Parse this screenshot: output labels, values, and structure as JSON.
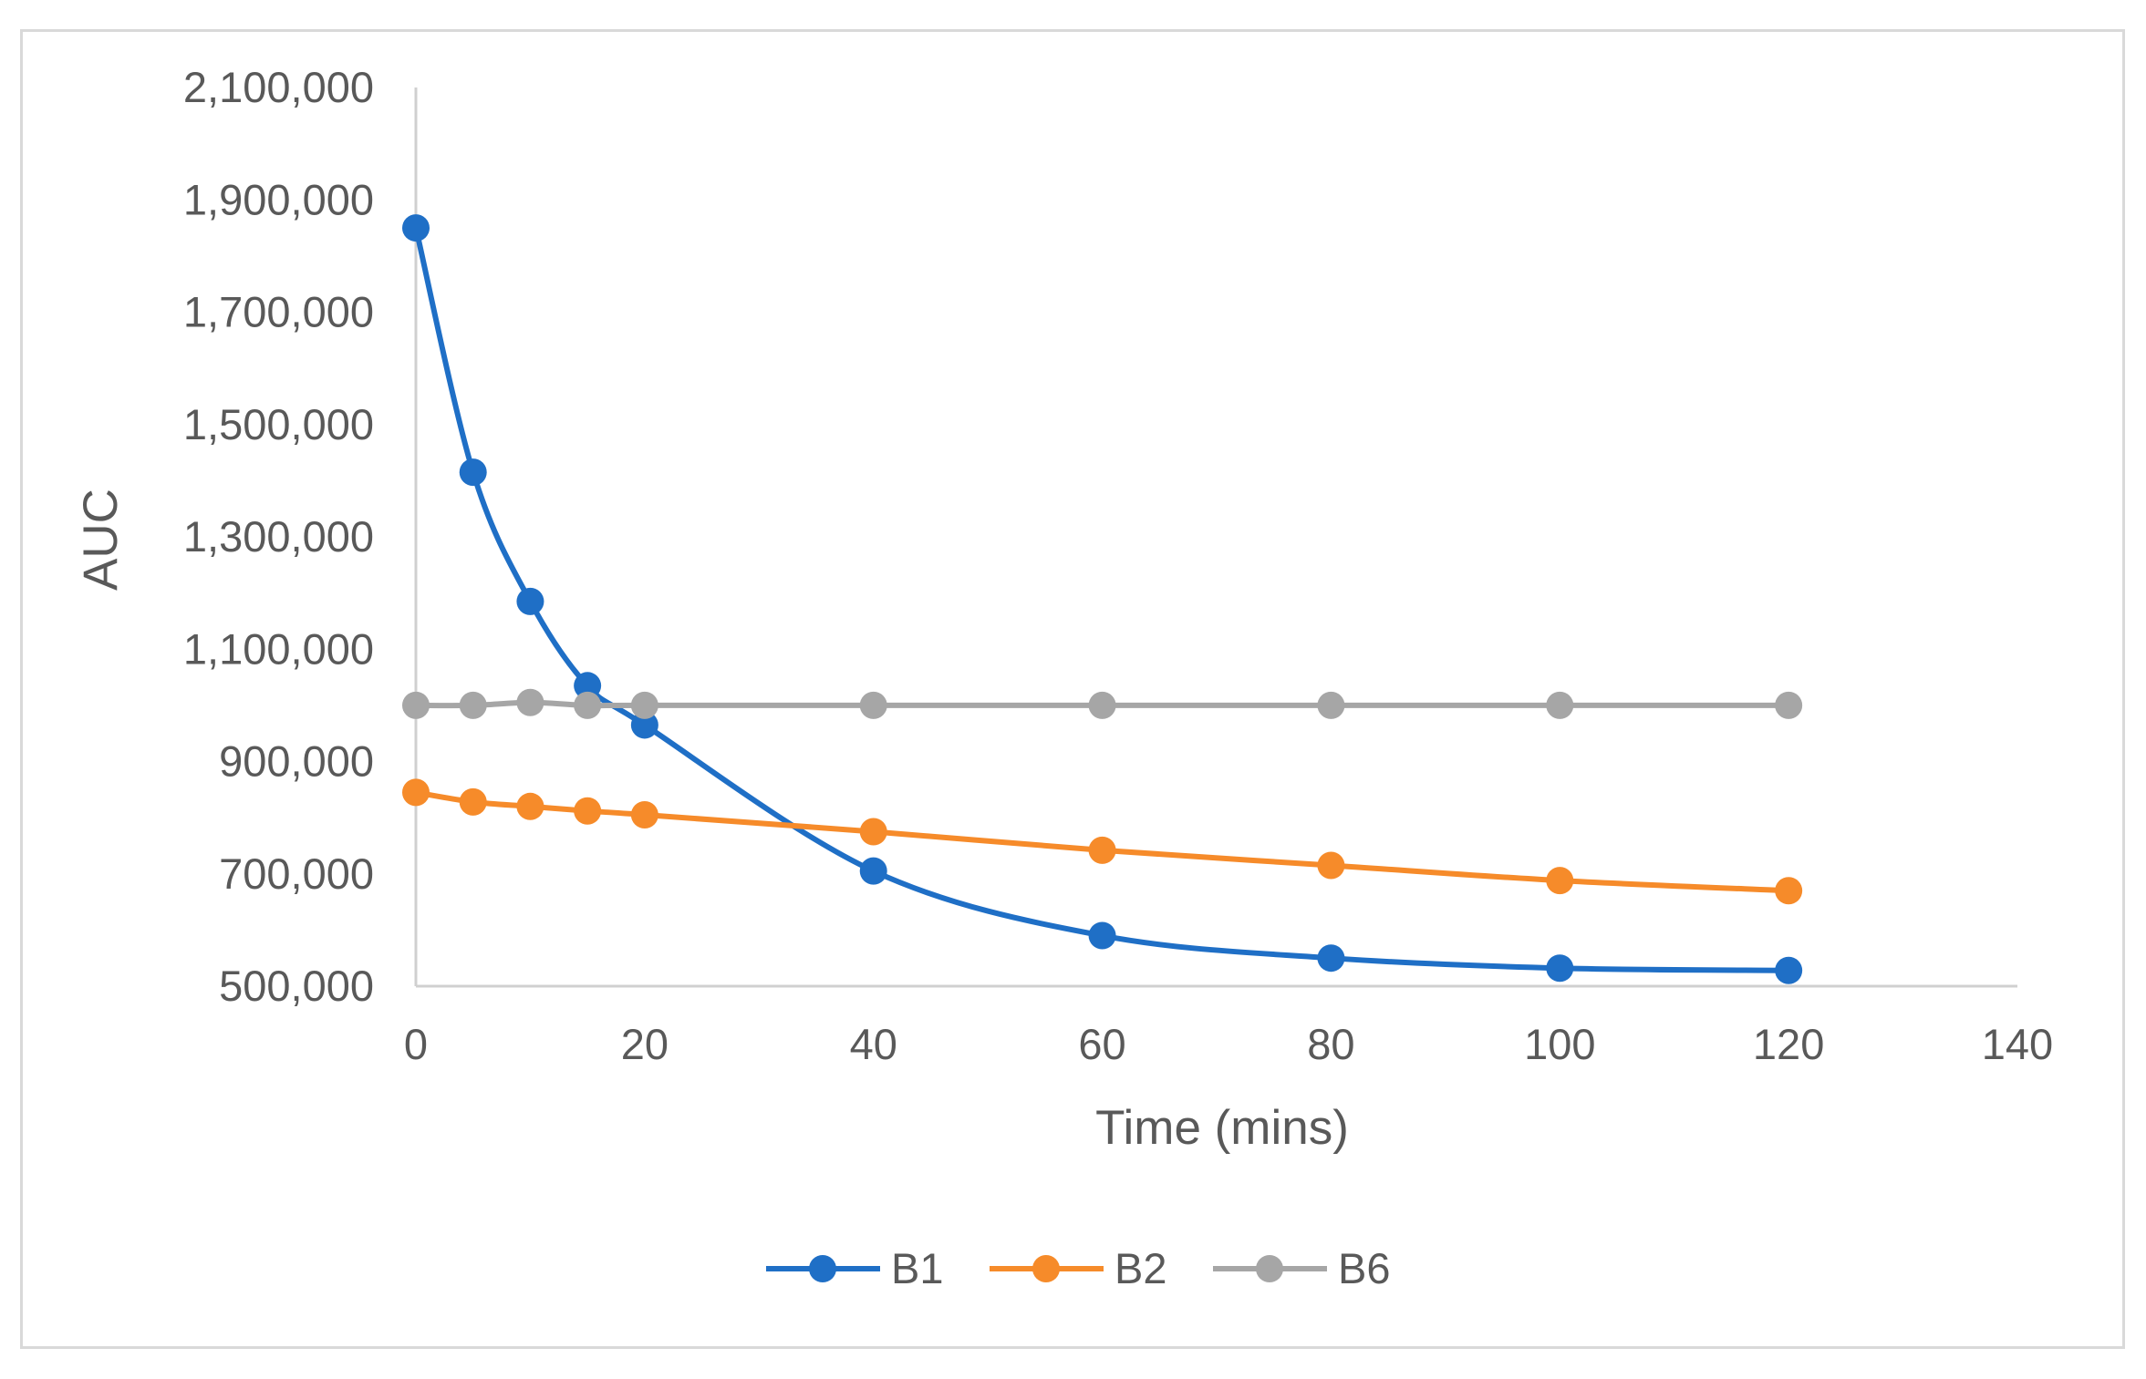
{
  "chart_data": {
    "type": "line",
    "title": "",
    "xlabel": "Time (mins)",
    "ylabel": "AUC",
    "xlim": [
      0,
      140
    ],
    "ylim": [
      500000,
      2100000
    ],
    "x_ticks": [
      0,
      20,
      40,
      60,
      80,
      100,
      120,
      140
    ],
    "x_tick_labels": [
      "0",
      "20",
      "40",
      "60",
      "80",
      "100",
      "120",
      "140"
    ],
    "y_ticks": [
      500000,
      700000,
      900000,
      1100000,
      1300000,
      1500000,
      1700000,
      1900000,
      2100000
    ],
    "y_tick_labels": [
      "500,000",
      "700,000",
      "900,000",
      "1,100,000",
      "1,300,000",
      "1,500,000",
      "1,700,000",
      "1,900,000",
      "2,100,000"
    ],
    "grid": false,
    "legend_position": "bottom",
    "x": [
      0,
      5,
      10,
      15,
      20,
      40,
      60,
      80,
      100,
      120
    ],
    "series": [
      {
        "name": "B1",
        "color": "#1f6fc6",
        "values": [
          1850000,
          1415000,
          1185000,
          1035000,
          965000,
          705000,
          590000,
          550000,
          532000,
          528000
        ]
      },
      {
        "name": "B2",
        "color": "#f68b2a",
        "values": [
          845000,
          828000,
          820000,
          812000,
          805000,
          775000,
          742000,
          715000,
          688000,
          670000
        ]
      },
      {
        "name": "B6",
        "color": "#a6a6a6",
        "values": [
          1000000,
          1000000,
          1005000,
          1000000,
          1000000,
          1000000,
          1000000,
          1000000,
          1000000,
          1000000
        ]
      }
    ]
  }
}
